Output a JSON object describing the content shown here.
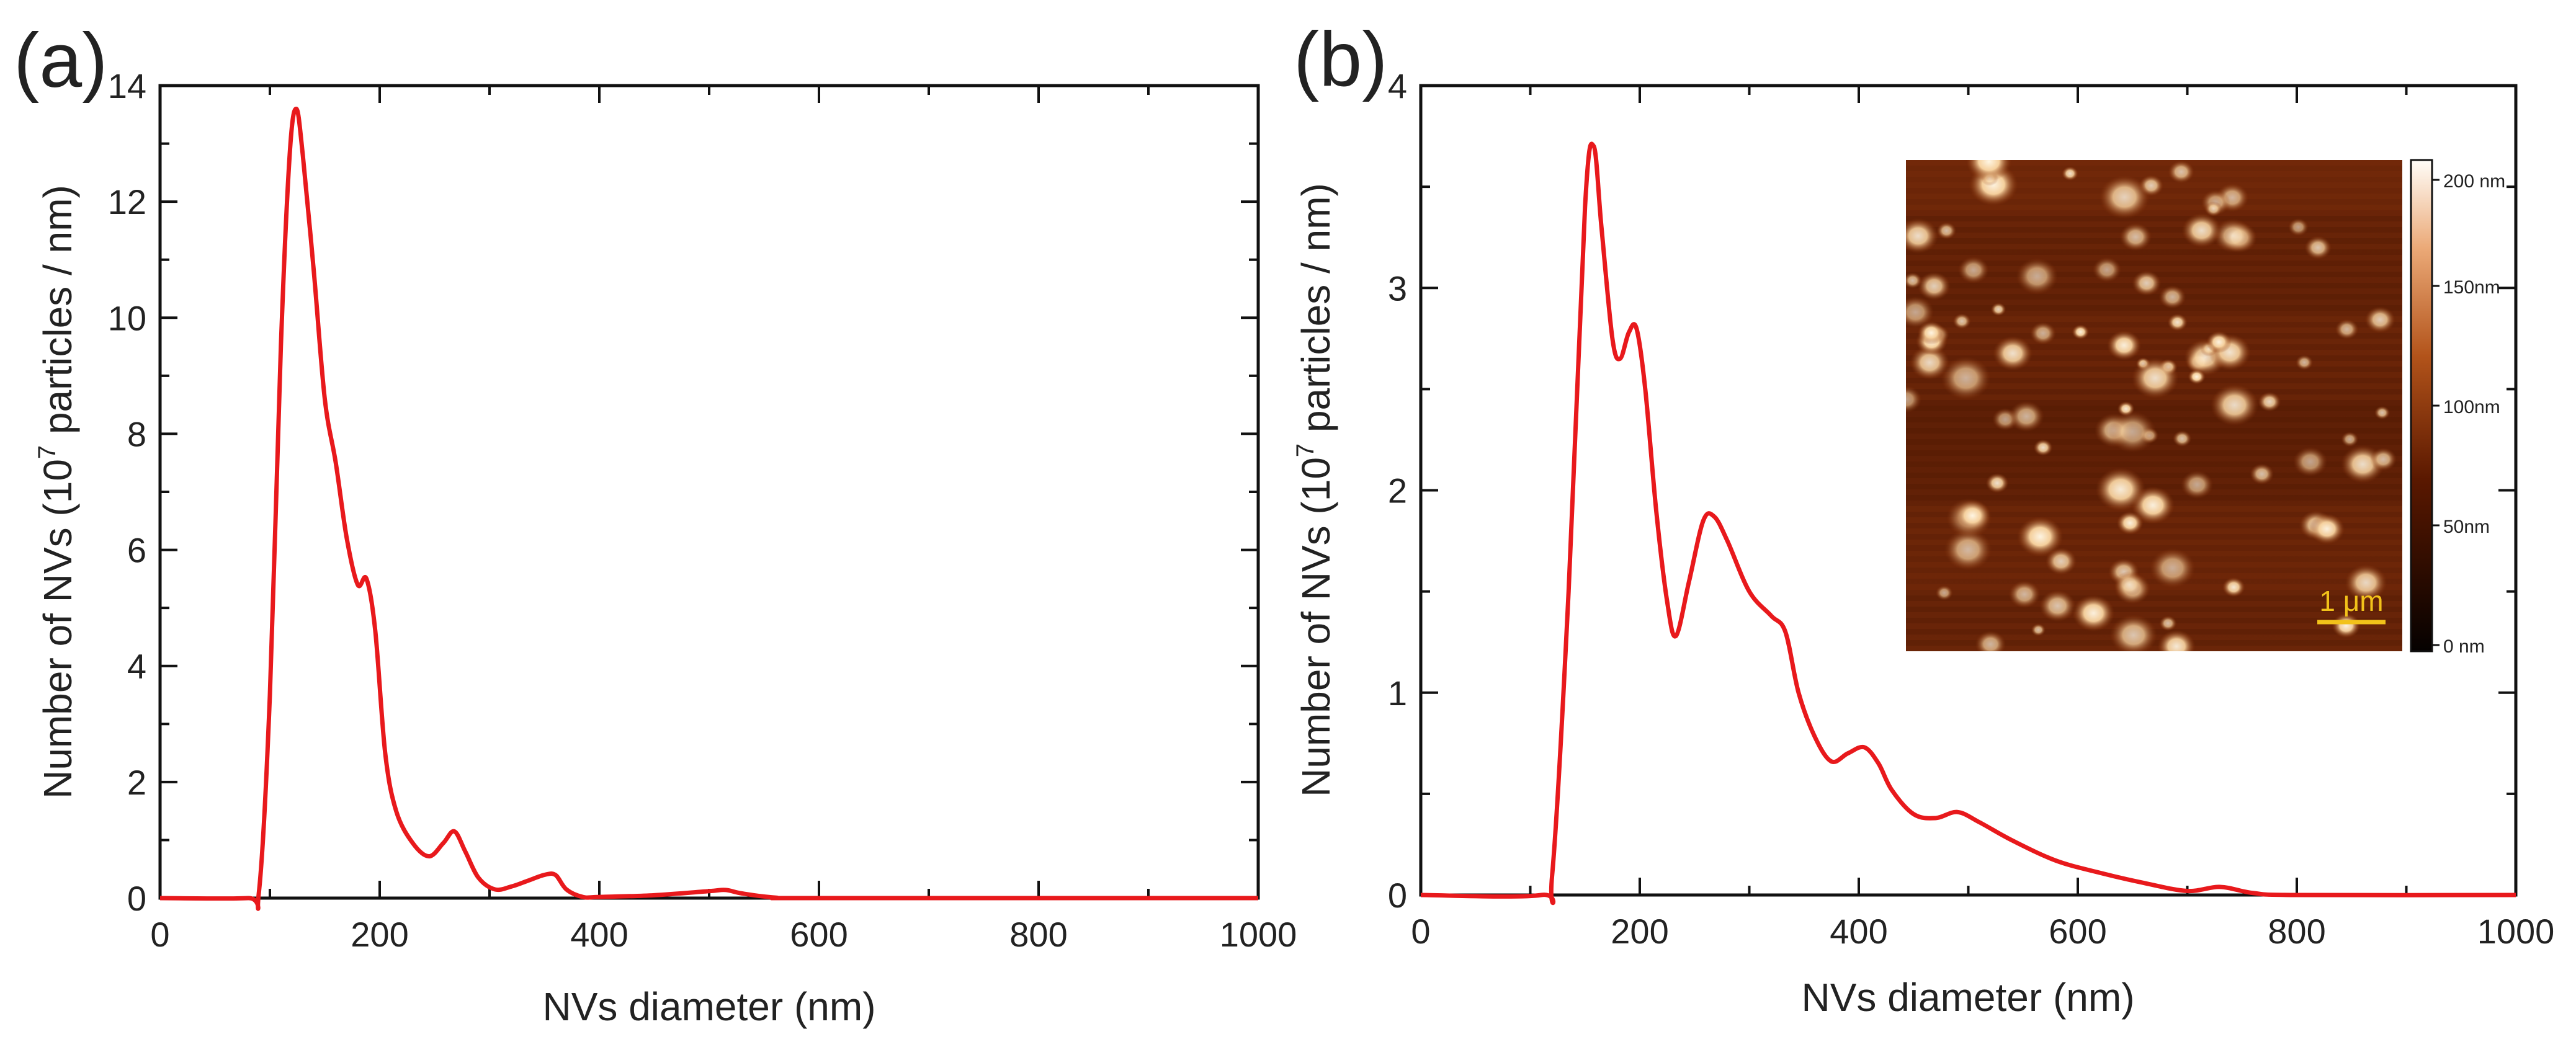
{
  "chart_data": [
    {
      "panel_label": "(a)",
      "type": "line",
      "xlabel": "NVs diameter (nm)",
      "ylabel_main": "Number of NVs (10",
      "ylabel_sup": "7",
      "ylabel_tail": " particles / nm)",
      "xlim": [
        0,
        1000
      ],
      "ylim": [
        0,
        14
      ],
      "xticks": [
        0,
        200,
        400,
        600,
        800,
        1000
      ],
      "yticks": [
        0,
        2,
        4,
        6,
        8,
        10,
        12,
        14
      ],
      "line_color": "#e8191c",
      "x": [
        0,
        80,
        90,
        100,
        110,
        118,
        124,
        130,
        140,
        150,
        160,
        170,
        180,
        188,
        196,
        205,
        215,
        230,
        245,
        258,
        268,
        278,
        290,
        305,
        320,
        335,
        350,
        360,
        370,
        385,
        400,
        450,
        500,
        515,
        530,
        560,
        600,
        1000
      ],
      "y": [
        0,
        0,
        0.1,
        3.5,
        9.5,
        12.8,
        13.6,
        12.8,
        10.8,
        8.6,
        7.5,
        6.2,
        5.4,
        5.5,
        4.6,
        2.5,
        1.5,
        0.95,
        0.72,
        0.95,
        1.15,
        0.8,
        0.35,
        0.15,
        0.2,
        0.3,
        0.4,
        0.4,
        0.15,
        0.02,
        0.02,
        0.05,
        0.12,
        0.14,
        0.08,
        0.01,
        0,
        0
      ]
    },
    {
      "panel_label": "(b)",
      "type": "line",
      "xlabel": "NVs diameter (nm)",
      "ylabel_main": "Number of NVs (10",
      "ylabel_sup": "7",
      "ylabel_tail": " particles / nm)",
      "xlim": [
        0,
        1000
      ],
      "ylim": [
        0,
        4
      ],
      "xticks": [
        0,
        200,
        400,
        600,
        800,
        1000
      ],
      "yticks": [
        0,
        1,
        2,
        3,
        4
      ],
      "line_color": "#e8191c",
      "x": [
        0,
        110,
        120,
        135,
        150,
        158,
        165,
        175,
        182,
        190,
        197,
        205,
        215,
        225,
        233,
        245,
        258,
        268,
        280,
        300,
        320,
        333,
        345,
        360,
        375,
        390,
        405,
        418,
        430,
        450,
        470,
        490,
        510,
        540,
        580,
        620,
        660,
        700,
        730,
        760,
        800,
        1000
      ],
      "y": [
        0,
        0,
        0.1,
        1.5,
        3.4,
        3.7,
        3.3,
        2.75,
        2.65,
        2.78,
        2.8,
        2.5,
        1.9,
        1.45,
        1.28,
        1.55,
        1.85,
        1.87,
        1.75,
        1.5,
        1.38,
        1.3,
        1.0,
        0.78,
        0.66,
        0.7,
        0.73,
        0.65,
        0.52,
        0.4,
        0.38,
        0.41,
        0.36,
        0.27,
        0.17,
        0.11,
        0.06,
        0.02,
        0.04,
        0.01,
        0,
        0
      ],
      "inset": {
        "scale_bar": "1 μm",
        "colorbar_ticks": [
          "200 nm",
          "150nm",
          "100nm",
          "50nm",
          "0 nm"
        ],
        "colorbar_values": [
          200,
          150,
          100,
          50,
          0
        ]
      }
    }
  ]
}
